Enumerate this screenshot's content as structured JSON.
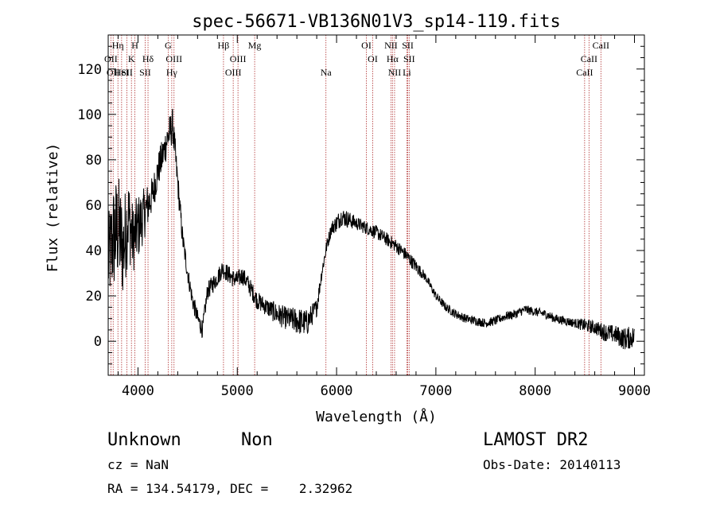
{
  "chart_data": {
    "type": "line",
    "title": "spec-56671-VB136N01V3_sp14-119.fits",
    "xlabel": "Wavelength (Å)",
    "ylabel": "Flux (relative)",
    "xlim": [
      3700,
      9100
    ],
    "ylim": [
      -15,
      135
    ],
    "xticks": [
      4000,
      5000,
      6000,
      7000,
      8000,
      9000
    ],
    "yticks": [
      0,
      20,
      40,
      60,
      80,
      100,
      120
    ],
    "grid": false,
    "line_color": "#000000",
    "marker_color": "#b03030",
    "series": [
      {
        "x": [
          3700,
          3750,
          3800,
          3850,
          3900,
          3950,
          4000,
          4050,
          4100,
          4150,
          4200,
          4250,
          4300,
          4350,
          4400,
          4450,
          4500,
          4550,
          4600,
          4650,
          4700,
          4750,
          4800,
          4850,
          4900,
          4950,
          5000,
          5050,
          5100,
          5150,
          5200,
          5300,
          5400,
          5500,
          5600,
          5700,
          5800,
          5850,
          5900,
          5950,
          6000,
          6050,
          6100,
          6200,
          6300,
          6400,
          6500,
          6600,
          6700,
          6800,
          6900,
          7000,
          7100,
          7200,
          7300,
          7400,
          7500,
          7600,
          7700,
          7800,
          7900,
          8000,
          8100,
          8200,
          8300,
          8400,
          8500,
          8600,
          8700,
          8800,
          8900,
          9000
        ],
        "y": [
          35,
          45,
          50,
          40,
          55,
          45,
          50,
          55,
          60,
          65,
          75,
          82,
          90,
          95,
          70,
          45,
          30,
          18,
          10,
          5,
          22,
          25,
          28,
          32,
          30,
          28,
          27,
          29,
          26,
          22,
          18,
          15,
          12,
          10,
          9,
          8,
          15,
          30,
          42,
          50,
          52,
          55,
          54,
          52,
          50,
          48,
          45,
          42,
          38,
          33,
          28,
          20,
          15,
          12,
          10,
          9,
          8,
          9,
          11,
          12,
          14,
          13,
          12,
          10,
          9,
          8,
          7,
          6,
          4,
          3,
          1,
          2
        ],
        "noise": [
          20,
          25,
          25,
          22,
          20,
          15,
          15,
          12,
          10,
          8,
          8,
          8,
          8,
          8,
          6,
          5,
          4,
          4,
          4,
          4,
          4,
          4,
          4,
          4,
          4,
          4,
          4,
          4,
          4,
          4,
          4,
          4,
          5,
          5,
          6,
          6,
          4,
          3,
          3,
          3,
          4,
          4,
          4,
          3,
          3,
          3,
          3,
          3,
          3,
          3,
          2,
          2,
          2,
          2,
          2,
          2,
          2,
          2,
          2,
          2,
          2,
          2,
          2,
          2,
          2,
          2,
          3,
          3,
          4,
          4,
          5,
          5
        ]
      }
    ],
    "lines": [
      {
        "w": 3727,
        "label": "OII",
        "row": 1
      },
      {
        "w": 3750,
        "label": "OII",
        "row": 2
      },
      {
        "w": 3798,
        "label": "Hη",
        "row": 0
      },
      {
        "w": 3835,
        "label": "HeI",
        "row": 2
      },
      {
        "w": 3889,
        "label": "SII",
        "row": 2
      },
      {
        "w": 3934,
        "label": "K",
        "row": 1
      },
      {
        "w": 3969,
        "label": "H",
        "row": 0
      },
      {
        "w": 4101,
        "label": "Hδ",
        "row": 1
      },
      {
        "w": 4072,
        "label": "SII",
        "row": 2
      },
      {
        "w": 4304,
        "label": "G",
        "row": 0
      },
      {
        "w": 4340,
        "label": "Hγ",
        "row": 2
      },
      {
        "w": 4363,
        "label": "OIII",
        "row": 1
      },
      {
        "w": 4861,
        "label": "Hβ",
        "row": 0
      },
      {
        "w": 4959,
        "label": "OIII",
        "row": 2
      },
      {
        "w": 5007,
        "label": "OIII",
        "row": 1
      },
      {
        "w": 5175,
        "label": "Mg",
        "row": 0
      },
      {
        "w": 5893,
        "label": "Na",
        "row": 2
      },
      {
        "w": 6300,
        "label": "OI",
        "row": 0
      },
      {
        "w": 6364,
        "label": "OI",
        "row": 1
      },
      {
        "w": 6548,
        "label": "NII",
        "row": 0
      },
      {
        "w": 6563,
        "label": "Hα",
        "row": 1
      },
      {
        "w": 6584,
        "label": "NII",
        "row": 2
      },
      {
        "w": 6708,
        "label": "Li",
        "row": 2
      },
      {
        "w": 6717,
        "label": "SII",
        "row": 0
      },
      {
        "w": 6731,
        "label": "SII",
        "row": 1
      },
      {
        "w": 8498,
        "label": "CaII",
        "row": 2
      },
      {
        "w": 8542,
        "label": "CaII",
        "row": 1
      },
      {
        "w": 8662,
        "label": "CaII",
        "row": 0
      }
    ]
  },
  "info": {
    "class": "Unknown",
    "subclass": "Non",
    "survey": "LAMOST DR2",
    "cz": "cz = NaN",
    "obs_date": "Obs-Date: 20140113",
    "radec": "RA = 134.54179, DEC =    2.32962"
  }
}
